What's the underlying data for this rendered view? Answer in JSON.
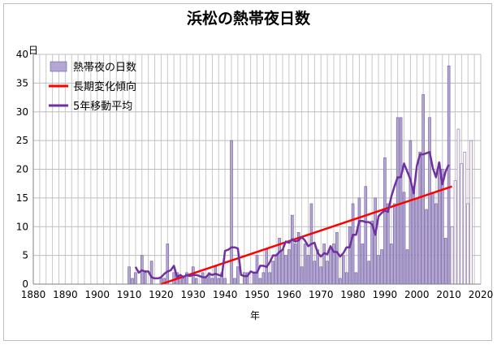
{
  "title": "浜松の熱帯夜日数",
  "chart_data": {
    "type": "bar",
    "title": "浜松の熱帯夜日数",
    "xlabel": "年",
    "ylabel": "日",
    "xlim": [
      1880,
      2020
    ],
    "ylim": [
      0,
      40
    ],
    "xticks": [
      1880,
      1890,
      1900,
      1910,
      1920,
      1930,
      1940,
      1950,
      1960,
      1970,
      1980,
      1990,
      2000,
      2010,
      2020
    ],
    "yticks": [
      0,
      5,
      10,
      15,
      20,
      25,
      30,
      35,
      40
    ],
    "grid": true,
    "legend_position": "top-left",
    "series": [
      {
        "name": "熱帯夜の日数",
        "kind": "bar",
        "color": "#b4a7d6",
        "points": [
          [
            1910,
            3
          ],
          [
            1911,
            1
          ],
          [
            1912,
            2
          ],
          [
            1913,
            0
          ],
          [
            1914,
            5
          ],
          [
            1915,
            2
          ],
          [
            1916,
            0
          ],
          [
            1917,
            4
          ],
          [
            1918,
            0
          ],
          [
            1919,
            0
          ],
          [
            1920,
            1
          ],
          [
            1921,
            1
          ],
          [
            1922,
            7
          ],
          [
            1923,
            0
          ],
          [
            1924,
            2
          ],
          [
            1925,
            2
          ],
          [
            1926,
            1
          ],
          [
            1927,
            1
          ],
          [
            1928,
            2
          ],
          [
            1929,
            0
          ],
          [
            1930,
            3
          ],
          [
            1931,
            1
          ],
          [
            1932,
            0
          ],
          [
            1933,
            2
          ],
          [
            1934,
            1
          ],
          [
            1935,
            2
          ],
          [
            1936,
            1
          ],
          [
            1937,
            3
          ],
          [
            1938,
            1
          ],
          [
            1939,
            2
          ],
          [
            1940,
            1
          ],
          [
            1941,
            0
          ],
          [
            1942,
            25
          ],
          [
            1943,
            1
          ],
          [
            1944,
            3
          ],
          [
            1945,
            0
          ],
          [
            1946,
            2
          ],
          [
            1947,
            2
          ],
          [
            1948,
            0
          ],
          [
            1949,
            2
          ],
          [
            1950,
            5
          ],
          [
            1951,
            1
          ],
          [
            1952,
            2
          ],
          [
            1953,
            6
          ],
          [
            1954,
            2
          ],
          [
            1955,
            4
          ],
          [
            1956,
            5
          ],
          [
            1957,
            8
          ],
          [
            1958,
            6
          ],
          [
            1959,
            5
          ],
          [
            1960,
            6
          ],
          [
            1961,
            12
          ],
          [
            1962,
            7
          ],
          [
            1963,
            9
          ],
          [
            1964,
            3
          ],
          [
            1965,
            7
          ],
          [
            1966,
            5
          ],
          [
            1967,
            14
          ],
          [
            1968,
            4
          ],
          [
            1969,
            6
          ],
          [
            1970,
            3
          ],
          [
            1971,
            7
          ],
          [
            1972,
            4
          ],
          [
            1973,
            6
          ],
          [
            1974,
            7
          ],
          [
            1975,
            9
          ],
          [
            1976,
            1
          ],
          [
            1977,
            5
          ],
          [
            1978,
            2
          ],
          [
            1979,
            10
          ],
          [
            1980,
            14
          ],
          [
            1981,
            2
          ],
          [
            1982,
            15
          ],
          [
            1983,
            7
          ],
          [
            1984,
            17
          ],
          [
            1985,
            4
          ],
          [
            1986,
            11
          ],
          [
            1987,
            15
          ],
          [
            1988,
            5
          ],
          [
            1989,
            6
          ],
          [
            1990,
            22
          ],
          [
            1991,
            14
          ],
          [
            1992,
            7
          ],
          [
            1993,
            14
          ],
          [
            1994,
            29
          ],
          [
            1995,
            29
          ],
          [
            1996,
            16
          ],
          [
            1997,
            6
          ],
          [
            1998,
            25
          ],
          [
            1999,
            17
          ],
          [
            2000,
            15
          ],
          [
            2001,
            23
          ],
          [
            2002,
            33
          ],
          [
            2003,
            13
          ],
          [
            2004,
            29
          ],
          [
            2005,
            16
          ],
          [
            2006,
            14
          ],
          [
            2007,
            21
          ],
          [
            2008,
            20
          ],
          [
            2009,
            8
          ],
          [
            2010,
            38
          ],
          [
            2011,
            10
          ],
          [
            2012,
            18
          ],
          [
            2013,
            27
          ],
          [
            2014,
            21
          ],
          [
            2015,
            23
          ],
          [
            2016,
            14
          ],
          [
            2017,
            25
          ]
        ]
      },
      {
        "name": "長期変化傾向",
        "kind": "line",
        "color": "#ff0000",
        "points": [
          [
            1920,
            0
          ],
          [
            2011,
            17
          ]
        ]
      },
      {
        "name": "5年移動平均",
        "kind": "line",
        "color": "#7030a0",
        "points": [
          [
            1912,
            3.0
          ],
          [
            1913,
            2.0
          ],
          [
            1914,
            2.4
          ],
          [
            1915,
            2.2
          ],
          [
            1916,
            2.2
          ],
          [
            1917,
            1.2
          ],
          [
            1918,
            1.0
          ],
          [
            1919,
            1.0
          ],
          [
            1920,
            1.2
          ],
          [
            1921,
            1.8
          ],
          [
            1922,
            2.2
          ],
          [
            1923,
            2.4
          ],
          [
            1924,
            3.2
          ],
          [
            1925,
            1.2
          ],
          [
            1926,
            1.6
          ],
          [
            1927,
            1.2
          ],
          [
            1928,
            1.6
          ],
          [
            1929,
            1.4
          ],
          [
            1930,
            1.6
          ],
          [
            1931,
            1.6
          ],
          [
            1932,
            1.4
          ],
          [
            1933,
            1.2
          ],
          [
            1934,
            1.2
          ],
          [
            1935,
            1.8
          ],
          [
            1936,
            1.6
          ],
          [
            1937,
            1.8
          ],
          [
            1938,
            1.6
          ],
          [
            1939,
            1.4
          ],
          [
            1940,
            5.8
          ],
          [
            1941,
            6.0
          ],
          [
            1942,
            6.4
          ],
          [
            1943,
            6.4
          ],
          [
            1944,
            6.2
          ],
          [
            1945,
            1.6
          ],
          [
            1946,
            1.4
          ],
          [
            1947,
            1.4
          ],
          [
            1948,
            2.2
          ],
          [
            1949,
            2.0
          ],
          [
            1950,
            2.0
          ],
          [
            1951,
            3.2
          ],
          [
            1952,
            3.2
          ],
          [
            1953,
            3.0
          ],
          [
            1954,
            3.8
          ],
          [
            1955,
            5.0
          ],
          [
            1956,
            5.0
          ],
          [
            1957,
            5.6
          ],
          [
            1958,
            6.0
          ],
          [
            1959,
            7.4
          ],
          [
            1960,
            7.2
          ],
          [
            1961,
            7.8
          ],
          [
            1962,
            7.4
          ],
          [
            1963,
            7.6
          ],
          [
            1964,
            8.2
          ],
          [
            1965,
            7.6
          ],
          [
            1966,
            6.6
          ],
          [
            1967,
            7.0
          ],
          [
            1968,
            7.2
          ],
          [
            1969,
            5.4
          ],
          [
            1970,
            4.8
          ],
          [
            1971,
            5.4
          ],
          [
            1972,
            5.2
          ],
          [
            1973,
            6.6
          ],
          [
            1974,
            5.6
          ],
          [
            1975,
            5.6
          ],
          [
            1976,
            4.8
          ],
          [
            1977,
            5.4
          ],
          [
            1978,
            6.4
          ],
          [
            1979,
            6.4
          ],
          [
            1980,
            8.6
          ],
          [
            1981,
            8.6
          ],
          [
            1982,
            11.0
          ],
          [
            1983,
            11.0
          ],
          [
            1984,
            10.8
          ],
          [
            1985,
            10.8
          ],
          [
            1986,
            10.4
          ],
          [
            1987,
            8.6
          ],
          [
            1988,
            11.8
          ],
          [
            1989,
            12.4
          ],
          [
            1990,
            12.8
          ],
          [
            1991,
            12.6
          ],
          [
            1992,
            15.2
          ],
          [
            1993,
            17.0
          ],
          [
            1994,
            18.6
          ],
          [
            1995,
            18.6
          ],
          [
            1996,
            21.0
          ],
          [
            1997,
            19.6
          ],
          [
            1998,
            18.2
          ],
          [
            1999,
            15.8
          ],
          [
            2000,
            20.6
          ],
          [
            2001,
            22.6
          ],
          [
            2002,
            22.6
          ],
          [
            2003,
            22.8
          ],
          [
            2004,
            23.0
          ],
          [
            2005,
            20.2
          ],
          [
            2006,
            18.6
          ],
          [
            2007,
            21.2
          ],
          [
            2008,
            17.4
          ],
          [
            2009,
            19.6
          ],
          [
            2010,
            20.8
          ]
        ]
      }
    ]
  }
}
